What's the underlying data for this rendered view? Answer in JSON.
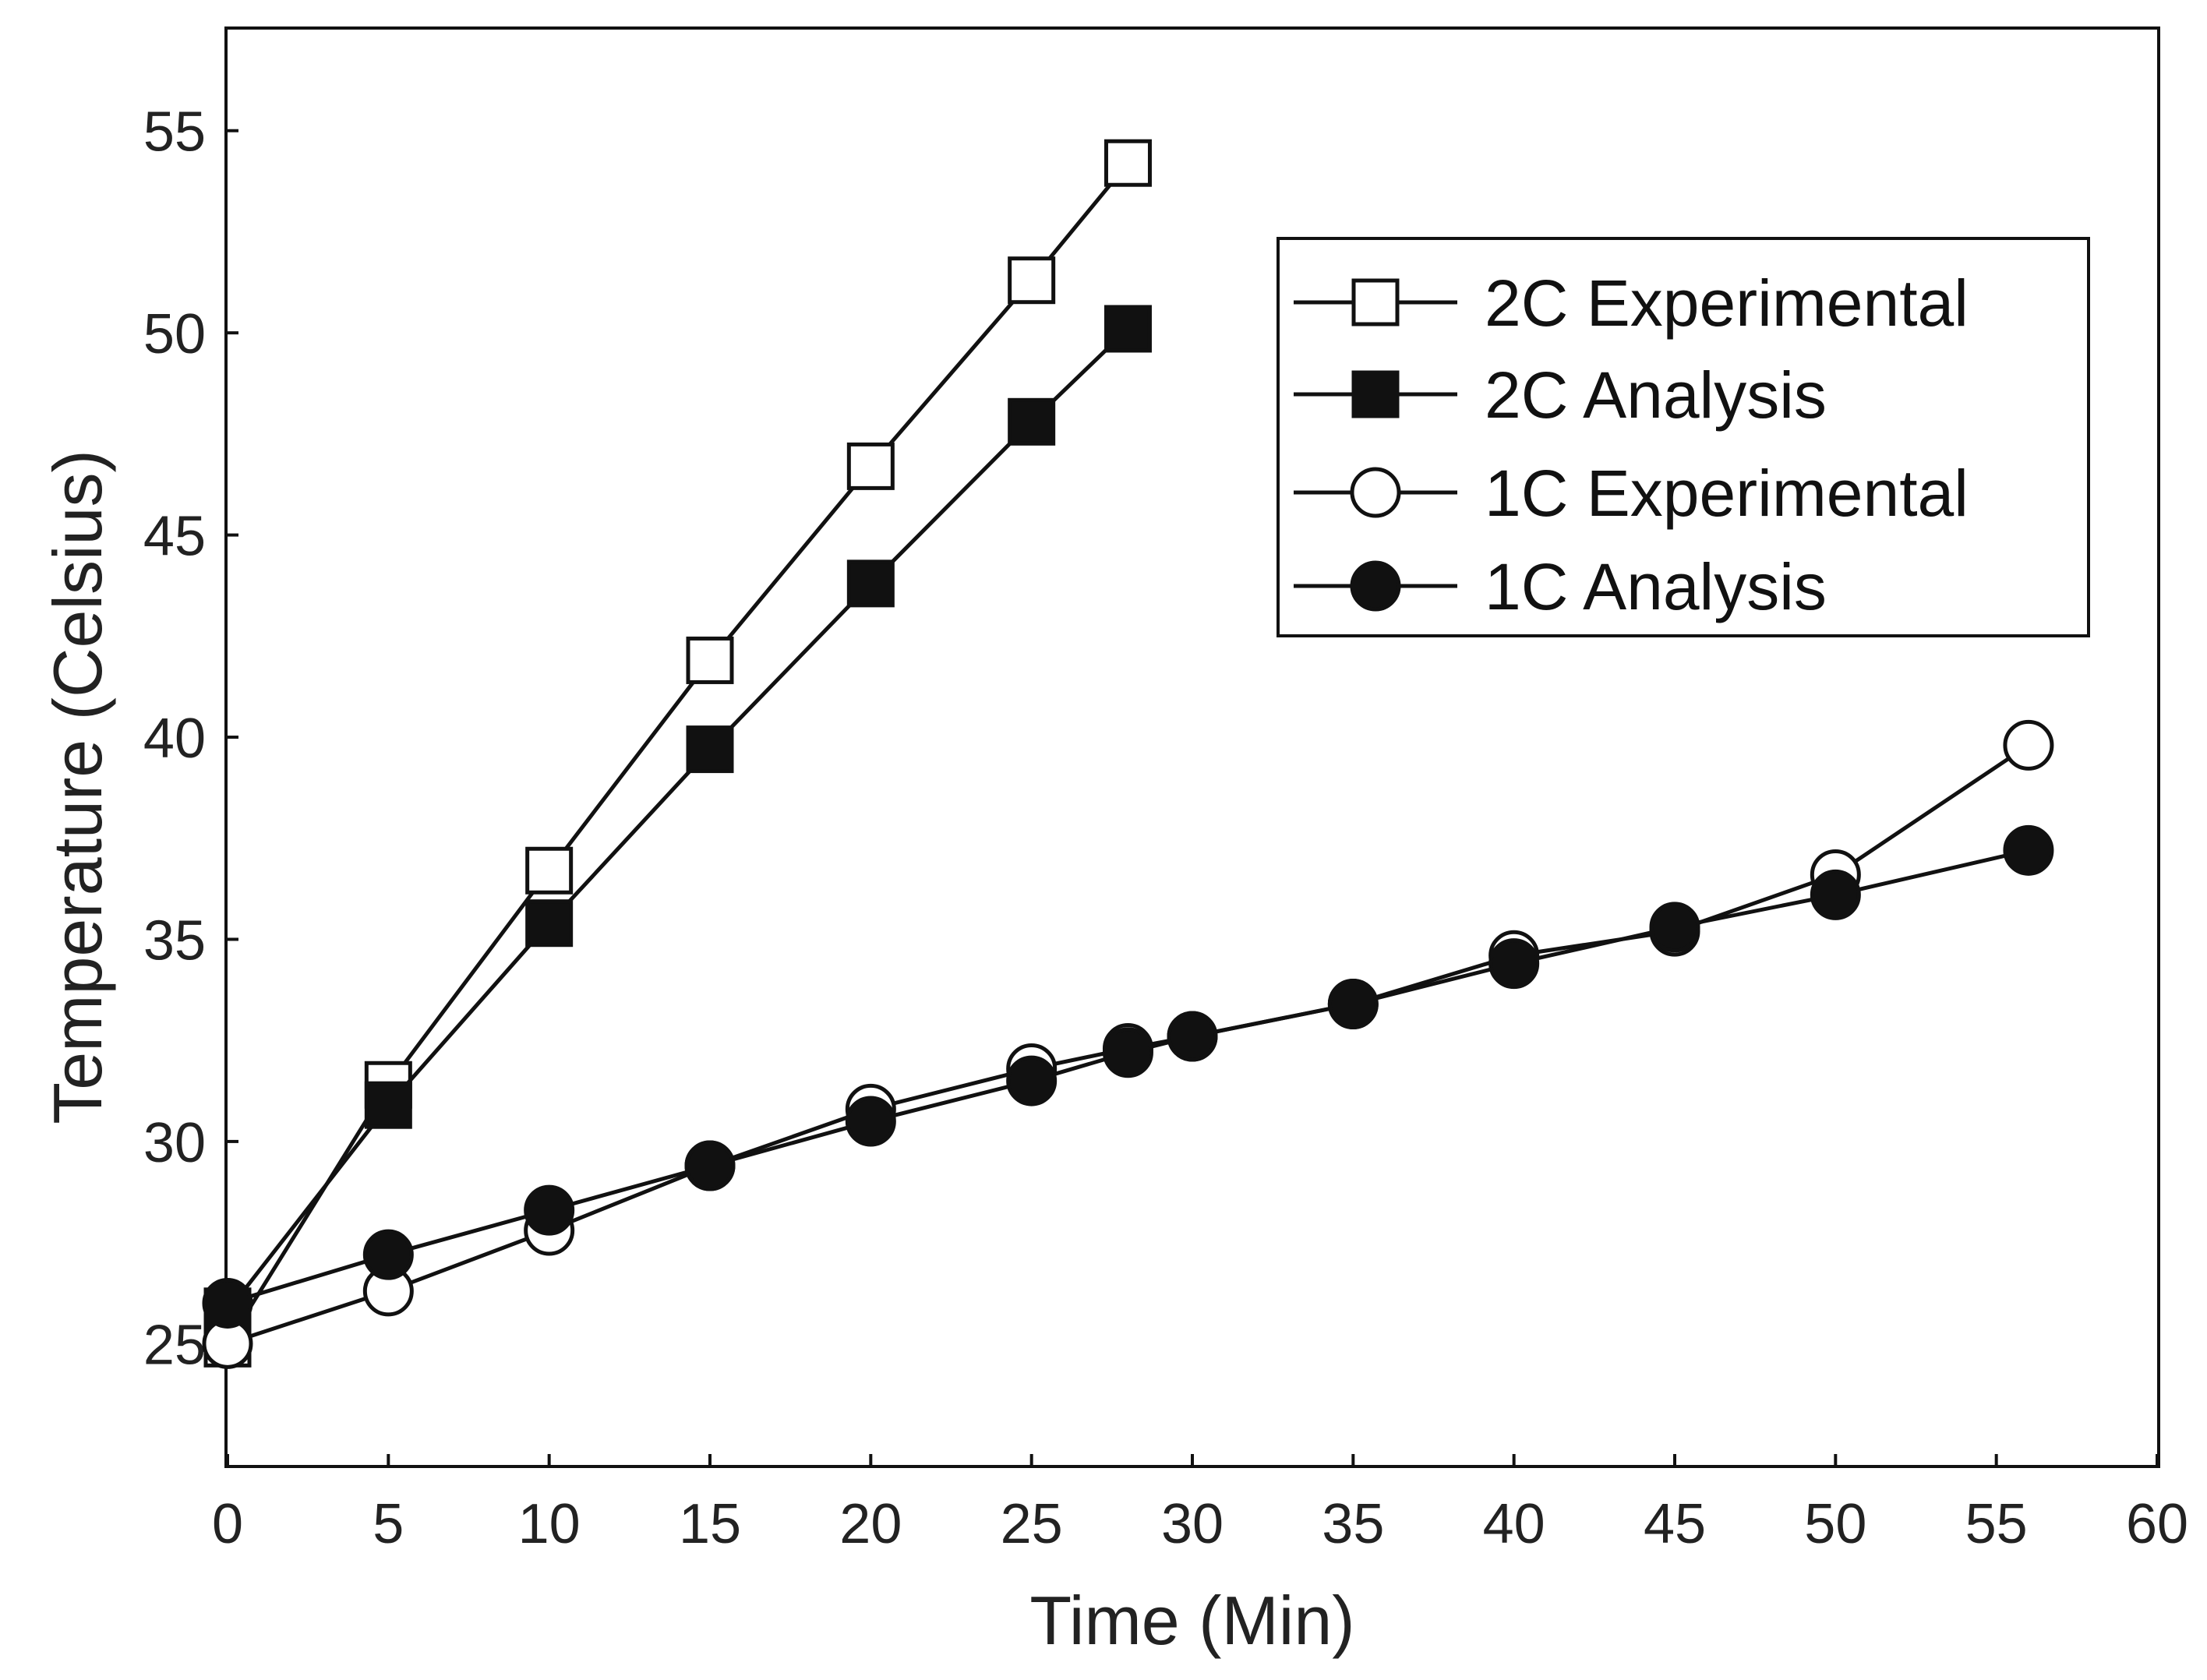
{
  "chart_data": {
    "type": "line",
    "title": "",
    "xlabel": "Time (Min)",
    "ylabel": "Temperature (Celsius)",
    "xlim": [
      0,
      60
    ],
    "ylim": [
      22,
      57.5
    ],
    "xticks": [
      0,
      5,
      10,
      15,
      20,
      25,
      30,
      35,
      40,
      45,
      50,
      55,
      60
    ],
    "yticks": [
      25,
      30,
      35,
      40,
      45,
      50,
      55
    ],
    "grid": false,
    "legend_position": "top-right",
    "series": [
      {
        "name": "2C Experimental",
        "marker": "square",
        "filled": false,
        "x": [
          0,
          5,
          10,
          15,
          20,
          25,
          28
        ],
        "y": [
          25,
          31.4,
          36.7,
          41.9,
          46.7,
          51.3,
          54.2
        ]
      },
      {
        "name": "2C Analysis",
        "marker": "square",
        "filled": true,
        "x": [
          0,
          5,
          10,
          15,
          20,
          25,
          28
        ],
        "y": [
          25.8,
          30.9,
          35.4,
          39.7,
          43.8,
          47.8,
          50.1
        ]
      },
      {
        "name": "1C Experimental",
        "marker": "circle",
        "filled": false,
        "x": [
          0,
          5,
          10,
          15,
          20,
          25,
          28,
          30,
          35,
          40,
          45,
          50,
          56
        ],
        "y": [
          25,
          26.3,
          27.8,
          29.4,
          30.8,
          31.8,
          32.3,
          32.6,
          33.4,
          34.6,
          35.2,
          36.6,
          39.8
        ]
      },
      {
        "name": "1C Analysis",
        "marker": "circle",
        "filled": true,
        "x": [
          0,
          5,
          10,
          15,
          20,
          25,
          28,
          30,
          35,
          40,
          45,
          50,
          56
        ],
        "y": [
          26,
          27.2,
          28.3,
          29.4,
          30.5,
          31.5,
          32.2,
          32.6,
          33.4,
          34.4,
          35.3,
          36.1,
          37.2
        ]
      }
    ]
  }
}
